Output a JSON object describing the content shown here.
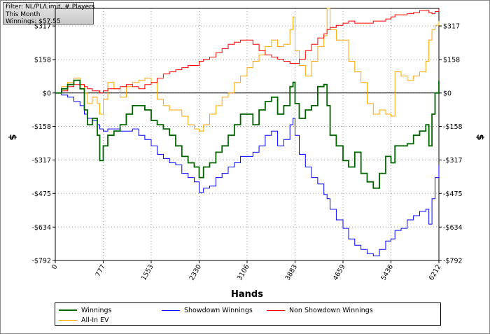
{
  "filter": {
    "line1": "Filter: NL/PL/Limit, # Players",
    "line2": "This Month",
    "line3": "Winnings: $57.55"
  },
  "colors": {
    "winnings": "#006400",
    "showdown": "#0000ff",
    "non_showdown": "#ff0000",
    "all_in_ev": "#ffa500"
  },
  "chart_data": {
    "type": "line",
    "xlabel": "Hands",
    "ylabel": "$",
    "xlim": [
      0,
      6212
    ],
    "ylim": [
      -792,
      400
    ],
    "x_ticks": [
      0,
      777,
      1553,
      2330,
      3106,
      3883,
      4659,
      5436,
      6212
    ],
    "x_tick_labels": [
      "0",
      "777",
      "1553",
      "2330",
      "3106",
      "3883",
      "4659",
      "5436",
      "6212"
    ],
    "y_ticks": [
      317,
      158,
      0,
      -158,
      -317,
      -475,
      -634,
      -792
    ],
    "y_tick_labels": [
      "$317",
      "$158",
      "$0",
      "-$158",
      "-$317",
      "-$475",
      "-$634",
      "-$792"
    ],
    "grid": true,
    "legend_position": "bottom",
    "series": [
      {
        "name": "Winnings",
        "x": [
          0,
          100,
          200,
          300,
          400,
          470,
          520,
          600,
          680,
          720,
          777,
          850,
          950,
          1050,
          1150,
          1250,
          1350,
          1450,
          1553,
          1650,
          1750,
          1850,
          1950,
          2050,
          2150,
          2250,
          2330,
          2400,
          2500,
          2600,
          2700,
          2800,
          2900,
          3000,
          3106,
          3200,
          3300,
          3400,
          3500,
          3600,
          3700,
          3800,
          3850,
          3883,
          3950,
          4050,
          4150,
          4250,
          4350,
          4400,
          4450,
          4550,
          4659,
          4750,
          4850,
          4950,
          5050,
          5150,
          5250,
          5350,
          5436,
          5500,
          5600,
          5700,
          5800,
          5900,
          6000,
          6050,
          6100,
          6150,
          6212
        ],
        "y": [
          0,
          20,
          40,
          60,
          20,
          -80,
          -150,
          -120,
          -200,
          -320,
          -250,
          -200,
          -180,
          -150,
          -100,
          -60,
          -60,
          -80,
          -130,
          -150,
          -170,
          -200,
          -250,
          -300,
          -330,
          -350,
          -400,
          -350,
          -330,
          -280,
          -250,
          -200,
          -150,
          -100,
          -100,
          -150,
          -80,
          -40,
          -20,
          -100,
          -60,
          30,
          50,
          -50,
          -120,
          -80,
          -60,
          30,
          40,
          -60,
          -200,
          -250,
          -320,
          -350,
          -280,
          -380,
          -420,
          -450,
          -380,
          -300,
          -330,
          -250,
          -250,
          -240,
          -200,
          -180,
          -150,
          -250,
          -100,
          0,
          57.55
        ]
      },
      {
        "name": "Showdown Winnings",
        "x": [
          0,
          100,
          200,
          300,
          400,
          470,
          520,
          600,
          680,
          720,
          777,
          850,
          950,
          1050,
          1150,
          1250,
          1350,
          1450,
          1553,
          1650,
          1750,
          1850,
          1950,
          2050,
          2150,
          2250,
          2330,
          2400,
          2500,
          2600,
          2700,
          2800,
          2900,
          3000,
          3106,
          3200,
          3300,
          3400,
          3500,
          3600,
          3700,
          3800,
          3850,
          3883,
          3950,
          4050,
          4150,
          4250,
          4350,
          4400,
          4450,
          4550,
          4659,
          4750,
          4850,
          4950,
          5050,
          5150,
          5250,
          5350,
          5436,
          5500,
          5600,
          5700,
          5800,
          5900,
          6000,
          6050,
          6100,
          6150,
          6212
        ],
        "y": [
          0,
          -10,
          -20,
          -40,
          -60,
          -100,
          -120,
          -130,
          -150,
          -170,
          -180,
          -170,
          -170,
          -180,
          -180,
          -170,
          -200,
          -220,
          -250,
          -290,
          -310,
          -330,
          -340,
          -380,
          -400,
          -420,
          -470,
          -450,
          -440,
          -400,
          -380,
          -350,
          -330,
          -300,
          -300,
          -280,
          -250,
          -200,
          -180,
          -250,
          -220,
          -150,
          -120,
          -200,
          -290,
          -350,
          -400,
          -430,
          -480,
          -500,
          -550,
          -600,
          -640,
          -690,
          -720,
          -740,
          -760,
          -770,
          -740,
          -700,
          -690,
          -650,
          -640,
          -600,
          -580,
          -560,
          -550,
          -620,
          -500,
          -400,
          -340
        ]
      },
      {
        "name": "Non Showdown Winnings",
        "x": [
          0,
          100,
          200,
          300,
          400,
          470,
          520,
          600,
          680,
          720,
          777,
          850,
          950,
          1050,
          1150,
          1250,
          1350,
          1450,
          1553,
          1650,
          1750,
          1850,
          1950,
          2050,
          2150,
          2250,
          2330,
          2400,
          2500,
          2600,
          2700,
          2800,
          2900,
          3000,
          3106,
          3200,
          3300,
          3400,
          3500,
          3600,
          3700,
          3800,
          3850,
          3883,
          3950,
          4050,
          4150,
          4250,
          4350,
          4400,
          4450,
          4550,
          4659,
          4750,
          4850,
          4950,
          5050,
          5150,
          5250,
          5350,
          5436,
          5500,
          5600,
          5700,
          5800,
          5900,
          6000,
          6050,
          6100,
          6150,
          6212
        ],
        "y": [
          0,
          10,
          30,
          40,
          40,
          30,
          20,
          10,
          10,
          0,
          10,
          20,
          20,
          30,
          40,
          30,
          20,
          40,
          50,
          70,
          90,
          100,
          110,
          120,
          130,
          130,
          150,
          160,
          170,
          190,
          210,
          230,
          240,
          250,
          250,
          230,
          200,
          180,
          170,
          160,
          150,
          140,
          140,
          140,
          160,
          200,
          230,
          260,
          280,
          300,
          310,
          320,
          330,
          340,
          330,
          330,
          330,
          340,
          340,
          350,
          360,
          370,
          370,
          375,
          380,
          390,
          390,
          380,
          375,
          385,
          395
        ]
      },
      {
        "name": "All-In EV",
        "x": [
          0,
          100,
          200,
          300,
          400,
          470,
          520,
          600,
          680,
          720,
          777,
          850,
          950,
          1050,
          1150,
          1250,
          1350,
          1450,
          1553,
          1650,
          1750,
          1850,
          1950,
          2050,
          2150,
          2250,
          2330,
          2400,
          2500,
          2600,
          2700,
          2800,
          2900,
          3000,
          3106,
          3200,
          3300,
          3400,
          3500,
          3600,
          3700,
          3800,
          3850,
          3883,
          3950,
          4050,
          4150,
          4250,
          4350,
          4400,
          4450,
          4550,
          4659,
          4750,
          4850,
          4950,
          5050,
          5150,
          5250,
          5350,
          5436,
          5500,
          5600,
          5700,
          5800,
          5900,
          6000,
          6050,
          6100,
          6150,
          6212
        ],
        "y": [
          0,
          30,
          50,
          70,
          40,
          0,
          -50,
          -20,
          -50,
          -100,
          -30,
          50,
          20,
          -20,
          30,
          50,
          60,
          70,
          50,
          -30,
          -60,
          -80,
          -80,
          -110,
          -150,
          -170,
          -180,
          -150,
          -100,
          -60,
          -20,
          0,
          50,
          80,
          120,
          150,
          180,
          220,
          250,
          220,
          230,
          300,
          360,
          200,
          130,
          80,
          150,
          220,
          270,
          400,
          300,
          250,
          250,
          150,
          100,
          50,
          -50,
          -100,
          -80,
          -100,
          -110,
          100,
          80,
          60,
          80,
          100,
          150,
          250,
          300,
          320,
          340
        ]
      }
    ]
  }
}
